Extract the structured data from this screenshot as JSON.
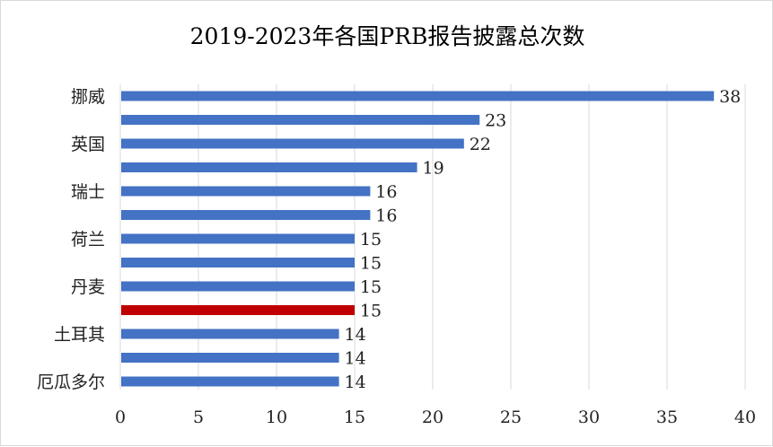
{
  "chart_data": {
    "type": "bar",
    "orientation": "horizontal",
    "title": "2019-2023年各国PRB报告披露总次数",
    "xlabel": "",
    "ylabel": "",
    "xlim": [
      0,
      40
    ],
    "xticks": [
      0,
      5,
      10,
      15,
      20,
      25,
      30,
      35,
      40
    ],
    "grid": true,
    "legend": "none",
    "category_labels_shown": [
      "挪威",
      "",
      "英国",
      "",
      "瑞士",
      "",
      "荷兰",
      "",
      "丹麦",
      "",
      "土耳其",
      "",
      "厄瓜多尔"
    ],
    "values": [
      38,
      23,
      22,
      19,
      16,
      16,
      15,
      15,
      15,
      15,
      14,
      14,
      14
    ],
    "bar_colors": [
      "#4472c4",
      "#4472c4",
      "#4472c4",
      "#4472c4",
      "#4472c4",
      "#4472c4",
      "#4472c4",
      "#4472c4",
      "#4472c4",
      "#c00000",
      "#4472c4",
      "#4472c4",
      "#4472c4"
    ],
    "primary_color": "#4472c4",
    "highlight_color": "#c00000",
    "gridline_color": "#d9d9d9"
  }
}
